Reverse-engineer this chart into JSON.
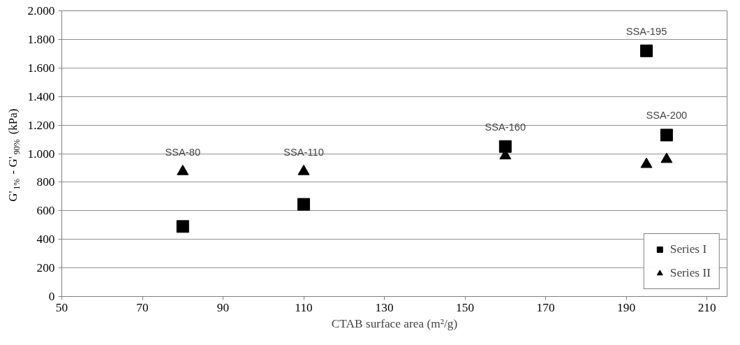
{
  "chart_data": {
    "type": "scatter",
    "xlabel": "CTAB surface area (m²/g)",
    "ylabel": "G'$_{1%}$ - G'$_{90%}$ (kPa)",
    "x": [
      80,
      110,
      160,
      195,
      200
    ],
    "series": [
      {
        "name": "Series I",
        "color": "#000000",
        "marker": "square",
        "values": [
          490,
          645,
          1050,
          1720,
          1130
        ]
      },
      {
        "name": "Series II",
        "color": "#000000",
        "marker": "triangle",
        "values": [
          875,
          875,
          985,
          925,
          960
        ]
      }
    ],
    "annotations": [
      {
        "text": "SSA-80",
        "x": 80,
        "y": 875
      },
      {
        "text": "SSA-110",
        "x": 110,
        "y": 875
      },
      {
        "text": "SSA-160",
        "x": 160,
        "y": 1050
      },
      {
        "text": "SSA-195",
        "x": 195,
        "y": 1720
      },
      {
        "text": "SSA-200",
        "x": 200,
        "y": 1130
      }
    ],
    "xlim": [
      50,
      215
    ],
    "xticks": [
      50,
      70,
      90,
      110,
      130,
      150,
      170,
      190,
      210
    ],
    "ylim": [
      0,
      2000
    ],
    "yticks": [
      0,
      200,
      400,
      600,
      800,
      {
        "value": 1000,
        "label": "1.000"
      },
      {
        "value": 1200,
        "label": "1.200"
      },
      {
        "value": 1400,
        "label": "1.400"
      },
      {
        "value": 1600,
        "label": "1.600"
      },
      {
        "value": 1800,
        "label": "1.800"
      },
      {
        "value": 2000,
        "label": "2.000"
      }
    ],
    "grid": "y",
    "legend": "bottom right"
  }
}
